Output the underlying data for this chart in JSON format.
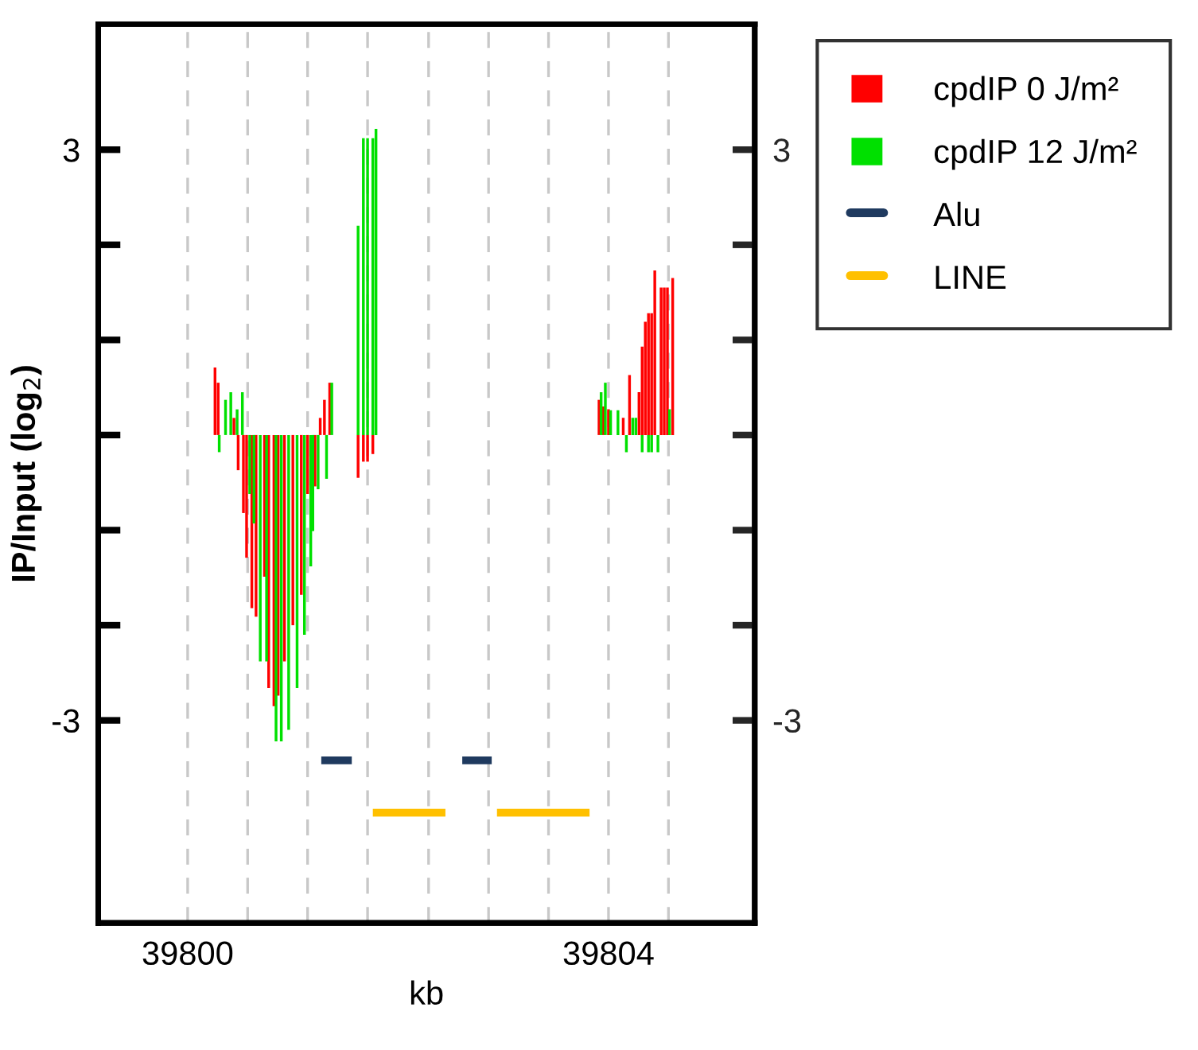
{
  "chart_data": {
    "type": "bar",
    "xlabel": "kb",
    "ylabel": "IP/Input (log$_{2}$)",
    "xlim": [
      39799.15,
      39805.39
    ],
    "xticks": [
      39800,
      39804
    ],
    "ylim": [
      -5.13,
      4.32
    ],
    "yticks": [
      3,
      {
        "value": 2,
        "label": null
      },
      {
        "value": 1,
        "label": null
      },
      {
        "value": 0,
        "label": null
      },
      {
        "value": -1,
        "label": null
      },
      {
        "value": -2,
        "label": null
      },
      -3
    ],
    "y2lim": [
      -5.13,
      4.32
    ],
    "y2ticks": [
      3,
      {
        "value": 2,
        "label": null
      },
      {
        "value": 1,
        "label": null
      },
      {
        "value": 0,
        "label": null
      },
      {
        "value": -1,
        "label": null
      },
      {
        "value": -2,
        "label": null
      },
      -3
    ],
    "grid": false,
    "legend": "top right",
    "ref_lines": [
      {
        "axis": "x",
        "value": 39800,
        "color": "#c8c8c8",
        "line_style": "dashed"
      },
      {
        "axis": "x",
        "value": 39800.57,
        "color": "#c8c8c8",
        "line_style": "dashed"
      },
      {
        "axis": "x",
        "value": 39801.14,
        "color": "#c8c8c8",
        "line_style": "dashed"
      },
      {
        "axis": "x",
        "value": 39801.71,
        "color": "#c8c8c8",
        "line_style": "dashed"
      },
      {
        "axis": "x",
        "value": 39802.29,
        "color": "#c8c8c8",
        "line_style": "dashed"
      },
      {
        "axis": "x",
        "value": 39802.86,
        "color": "#c8c8c8",
        "line_style": "dashed"
      },
      {
        "axis": "x",
        "value": 39803.43,
        "color": "#c8c8c8",
        "line_style": "dashed"
      },
      {
        "axis": "x",
        "value": 39804,
        "color": "#c8c8c8",
        "line_style": "dashed"
      },
      {
        "axis": "x",
        "value": 39804.57,
        "color": "#c8c8c8",
        "line_style": "dashed"
      }
    ],
    "series": [
      {
        "name": "cpdIP 0 J/m²",
        "color": "#ff0000",
        "x": [
          39800.26,
          39800.29,
          39800.44,
          39800.48,
          39800.53,
          39800.56,
          39800.61,
          39800.65,
          39800.73,
          39800.77,
          39800.82,
          39800.86,
          39800.92,
          39801.0,
          39801.08,
          39801.14,
          39801.21,
          39801.26,
          39801.3,
          39801.35,
          39801.62,
          39801.67,
          39801.71,
          39801.76,
          39803.91,
          39803.95,
          39804.0,
          39804.14,
          39804.2,
          39804.29,
          39804.32,
          39804.35,
          39804.38,
          39804.41,
          39804.44,
          39804.5,
          39804.53,
          39804.56,
          39804.61
        ],
        "values": [
          0.71,
          0.55,
          0.18,
          -0.37,
          -0.82,
          -1.29,
          -1.82,
          -1.91,
          -1.49,
          -2.66,
          -2.85,
          -2.74,
          -2.38,
          -2.0,
          -1.68,
          -0.62,
          -0.54,
          0.18,
          0.37,
          0.55,
          -0.45,
          -0.28,
          -0.28,
          -0.2,
          0.37,
          0.3,
          0.27,
          0.18,
          0.63,
          0.45,
          0.93,
          1.19,
          1.28,
          1.28,
          1.73,
          1.55,
          1.55,
          1.55,
          1.65
        ]
      },
      {
        "name": "cpdIP 12 J/m²",
        "color": "#00e000",
        "x": [
          39800.3,
          39800.36,
          39800.41,
          39800.47,
          39800.52,
          39800.59,
          39800.63,
          39800.69,
          39800.75,
          39800.84,
          39800.89,
          39800.96,
          39801.04,
          39801.11,
          39801.17,
          39801.19,
          39801.24,
          39801.32,
          39801.37,
          39801.62,
          39801.67,
          39801.71,
          39801.76,
          39801.79,
          39803.93,
          39803.97,
          39804.02,
          39804.09,
          39804.17,
          39804.23,
          39804.26,
          39804.32,
          39804.38,
          39804.41,
          39804.47,
          39804.58
        ],
        "values": [
          -0.18,
          0.37,
          0.45,
          0.27,
          0.45,
          -0.62,
          -0.93,
          -2.38,
          -2.38,
          -3.22,
          -3.22,
          -3.1,
          -2.66,
          -2.1,
          -1.38,
          -1.01,
          -0.57,
          -0.46,
          0.55,
          2.2,
          3.12,
          3.12,
          3.12,
          3.22,
          0.45,
          0.55,
          0.26,
          0.26,
          -0.18,
          0.18,
          0.18,
          -0.18,
          -0.18,
          -0.18,
          -0.18,
          0.27
        ]
      },
      {
        "name": "Alu",
        "color": "#1f3a5f",
        "type": "line",
        "x": [
          39801.27,
          39801.56,
          39802.0,
          39802.61,
          39802.89
        ],
        "values": [
          -3.42,
          -3.42,
          null,
          -3.42,
          -3.42
        ]
      },
      {
        "name": "LINE",
        "color": "#ffc000",
        "type": "line",
        "x": [
          39801.76,
          39802.45,
          39802.7,
          39802.94,
          39803.82
        ],
        "values": [
          -3.97,
          -3.97,
          null,
          -3.97,
          -3.97
        ]
      }
    ]
  }
}
